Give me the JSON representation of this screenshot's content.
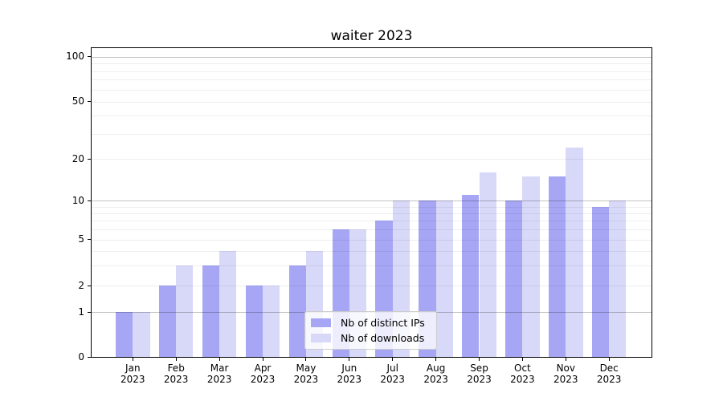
{
  "title": "waiter 2023",
  "chart_data": {
    "type": "bar",
    "title": "waiter 2023",
    "categories": [
      "Jan",
      "Feb",
      "Mar",
      "Apr",
      "May",
      "Jun",
      "Jul",
      "Aug",
      "Sep",
      "Oct",
      "Nov",
      "Dec"
    ],
    "year_label": "2023",
    "series": [
      {
        "name": "Nb of distinct IPs",
        "color": "#a6a6f5",
        "values": [
          1,
          2,
          3,
          2,
          3,
          6,
          7,
          10,
          11,
          10,
          15,
          9
        ]
      },
      {
        "name": "Nb of downloads",
        "color": "#d8d8f8",
        "values": [
          1,
          3,
          4,
          2,
          4,
          6,
          10,
          10,
          16,
          15,
          24,
          10
        ]
      }
    ],
    "y_ticks": [
      0,
      1,
      2,
      5,
      10,
      20,
      50,
      100
    ],
    "y_scale": "log above 1, linear below 1",
    "ylim": [
      0,
      115
    ],
    "xlabel": "",
    "ylabel": "",
    "grid": "horizontal major (1,10,100 darker) + minor (2-9, 20-90 faint)",
    "legend_position": "lower center inside plot"
  }
}
